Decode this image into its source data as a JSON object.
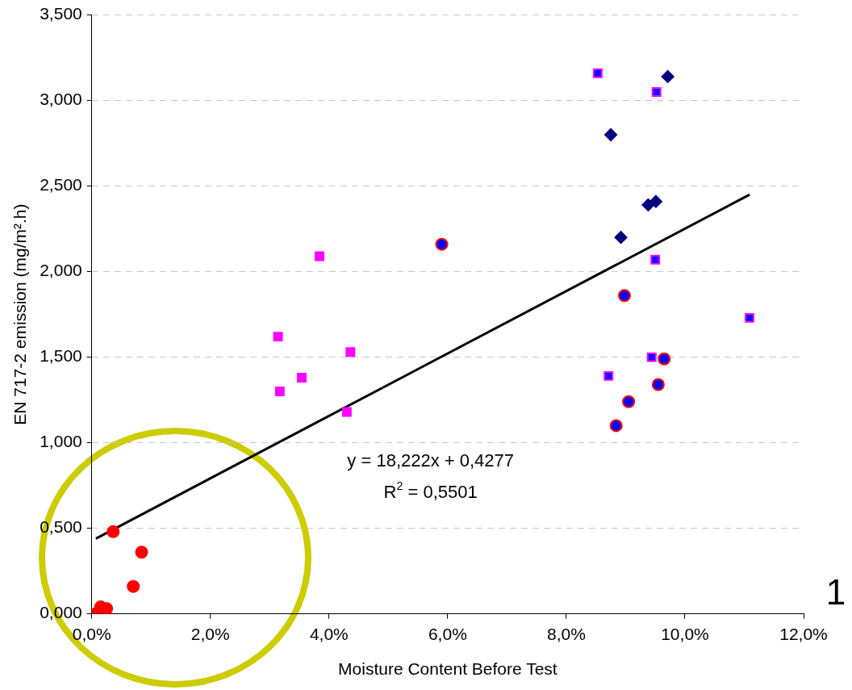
{
  "chart_data": {
    "type": "scatter",
    "xlabel": "Moisture Content Before Test",
    "ylabel": "EN 717-2 emission (mg/m².h)",
    "xlim": [
      0,
      0.12
    ],
    "xticks": [
      {
        "value": 0,
        "label": "0,0%"
      },
      {
        "value": 0.02,
        "label": "2,0%"
      },
      {
        "value": 0.04,
        "label": "4,0%"
      },
      {
        "value": 0.06,
        "label": "6,0%"
      },
      {
        "value": 0.08,
        "label": "8,0%"
      },
      {
        "value": 0.1,
        "label": "10,0%"
      },
      {
        "value": 0.12,
        "label": "12,0%"
      }
    ],
    "ylim": [
      0,
      3.5
    ],
    "yticks": [
      {
        "value": 0,
        "label": "0,000"
      },
      {
        "value": 0.5,
        "label": "0,500"
      },
      {
        "value": 1,
        "label": "1,000"
      },
      {
        "value": 1.5,
        "label": "1,500"
      },
      {
        "value": 2,
        "label": "2,000"
      },
      {
        "value": 2.5,
        "label": "2,500"
      },
      {
        "value": 3,
        "label": "3,000"
      },
      {
        "value": 3.5,
        "label": "3,500"
      }
    ],
    "grid": "y",
    "legend": false,
    "series": [
      {
        "type": "scatter",
        "marker": "circle",
        "color": "#ff0000",
        "x": [
          0.0007,
          0.0015,
          0.0025,
          0.0036,
          0.007,
          0.0084
        ],
        "values": [
          0.0,
          0.04,
          0.03,
          0.48,
          0.16,
          0.36
        ]
      },
      {
        "type": "scatter",
        "marker": "square",
        "color": "#ff00ff",
        "x": [
          0.0384,
          0.0314,
          0.0436,
          0.0354,
          0.0317,
          0.043
        ],
        "values": [
          2.09,
          1.62,
          1.53,
          1.38,
          1.3,
          1.18
        ]
      },
      {
        "type": "scatter",
        "marker": "circle",
        "color": "#0000ff",
        "x": [
          0.059,
          0.0898,
          0.0965,
          0.0955,
          0.0905,
          0.0884
        ],
        "values": [
          2.16,
          1.86,
          1.49,
          1.34,
          1.24,
          1.1
        ]
      },
      {
        "type": "scatter",
        "marker": "square",
        "color": "#0000ff",
        "x": [
          0.0853,
          0.0952,
          0.095,
          0.1109,
          0.0944,
          0.0871
        ],
        "values": [
          3.16,
          3.05,
          2.07,
          1.73,
          1.5,
          1.39
        ]
      },
      {
        "type": "scatter",
        "marker": "diamond",
        "color": "#000080",
        "x": [
          0.0971,
          0.0875,
          0.0951,
          0.0938,
          0.0892
        ],
        "values": [
          3.14,
          2.8,
          2.41,
          2.39,
          2.2
        ]
      },
      {
        "type": "line",
        "marker": "none",
        "line_style": "solid",
        "color": "#000000",
        "x": [
          0.0007,
          0.1109
        ],
        "values": [
          0.44,
          2.45
        ]
      }
    ],
    "annotations": [
      "y = 18,222x + 0,4277",
      "R$^{2}$ = 0,5501",
      "1"
    ]
  }
}
